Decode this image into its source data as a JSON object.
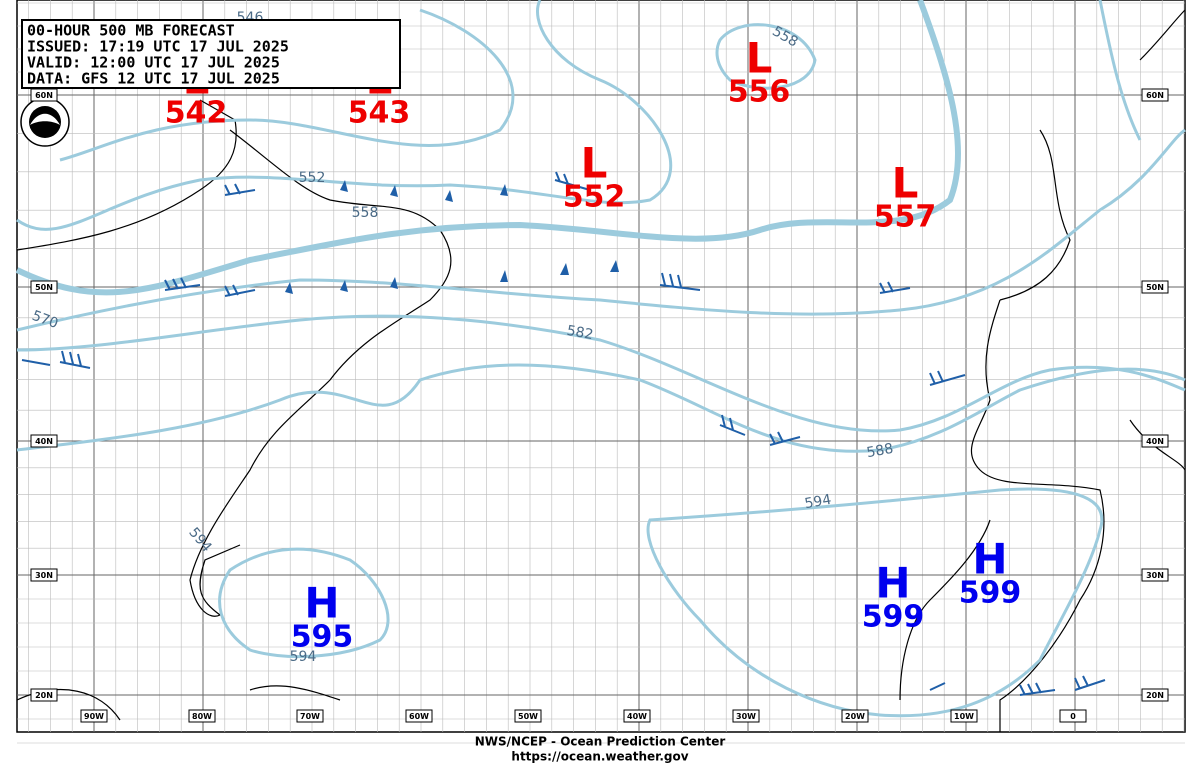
{
  "header": {
    "lines": [
      "00-HOUR 500 MB FORECAST",
      "ISSUED: 17:19 UTC 17 JUL 2025",
      "VALID:  12:00 UTC 17 JUL 2025",
      "DATA:  GFS 12 UTC 17 JUL 2025"
    ]
  },
  "logo": "NOAA",
  "centers": [
    {
      "symbol": "L",
      "value": "542"
    },
    {
      "symbol": "L",
      "value": "543"
    },
    {
      "symbol": "L",
      "value": "552"
    },
    {
      "symbol": "L",
      "value": "556"
    },
    {
      "symbol": "L",
      "value": "557"
    },
    {
      "symbol": "H",
      "value": "595"
    },
    {
      "symbol": "H",
      "value": "599"
    },
    {
      "symbol": "H",
      "value": "599"
    }
  ],
  "contour_labels": [
    "546",
    "552",
    "558",
    "558",
    "570",
    "582",
    "588",
    "594",
    "594",
    "594"
  ],
  "lon_labels": [
    "90W",
    "80W",
    "70W",
    "60W",
    "50W",
    "40W",
    "30W",
    "20W",
    "10W",
    "0"
  ],
  "lat_labels": [
    "60N",
    "50N",
    "40N",
    "30N",
    "20N"
  ],
  "footer": [
    "NWS/NCEP - Ocean Prediction Center",
    "https://ocean.weather.gov"
  ]
}
